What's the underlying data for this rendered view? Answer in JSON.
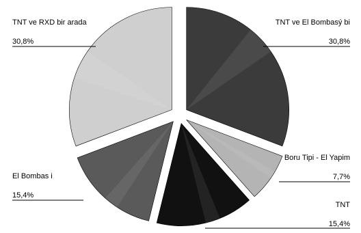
{
  "chart_data": {
    "type": "pie",
    "exploded": true,
    "slices": [
      {
        "label": "TNT ve El Bombasý bi",
        "value": 30.8,
        "value_label": "30,8%",
        "color": "#3b3b3b"
      },
      {
        "label": "Boru Tipi - El Yapim",
        "value": 7.7,
        "value_label": "7,7%",
        "color": "#b4b4b4"
      },
      {
        "label": "TNT",
        "value": 15.4,
        "value_label": "15,4%",
        "color": "#111111"
      },
      {
        "label": "El Bombas i",
        "value": 15.4,
        "value_label": "15,4%",
        "color": "#5a5a5a"
      },
      {
        "label": "TNT ve RXD bir arada",
        "value": 30.8,
        "value_label": "30,8%",
        "color": "#cfcfcf"
      }
    ]
  }
}
